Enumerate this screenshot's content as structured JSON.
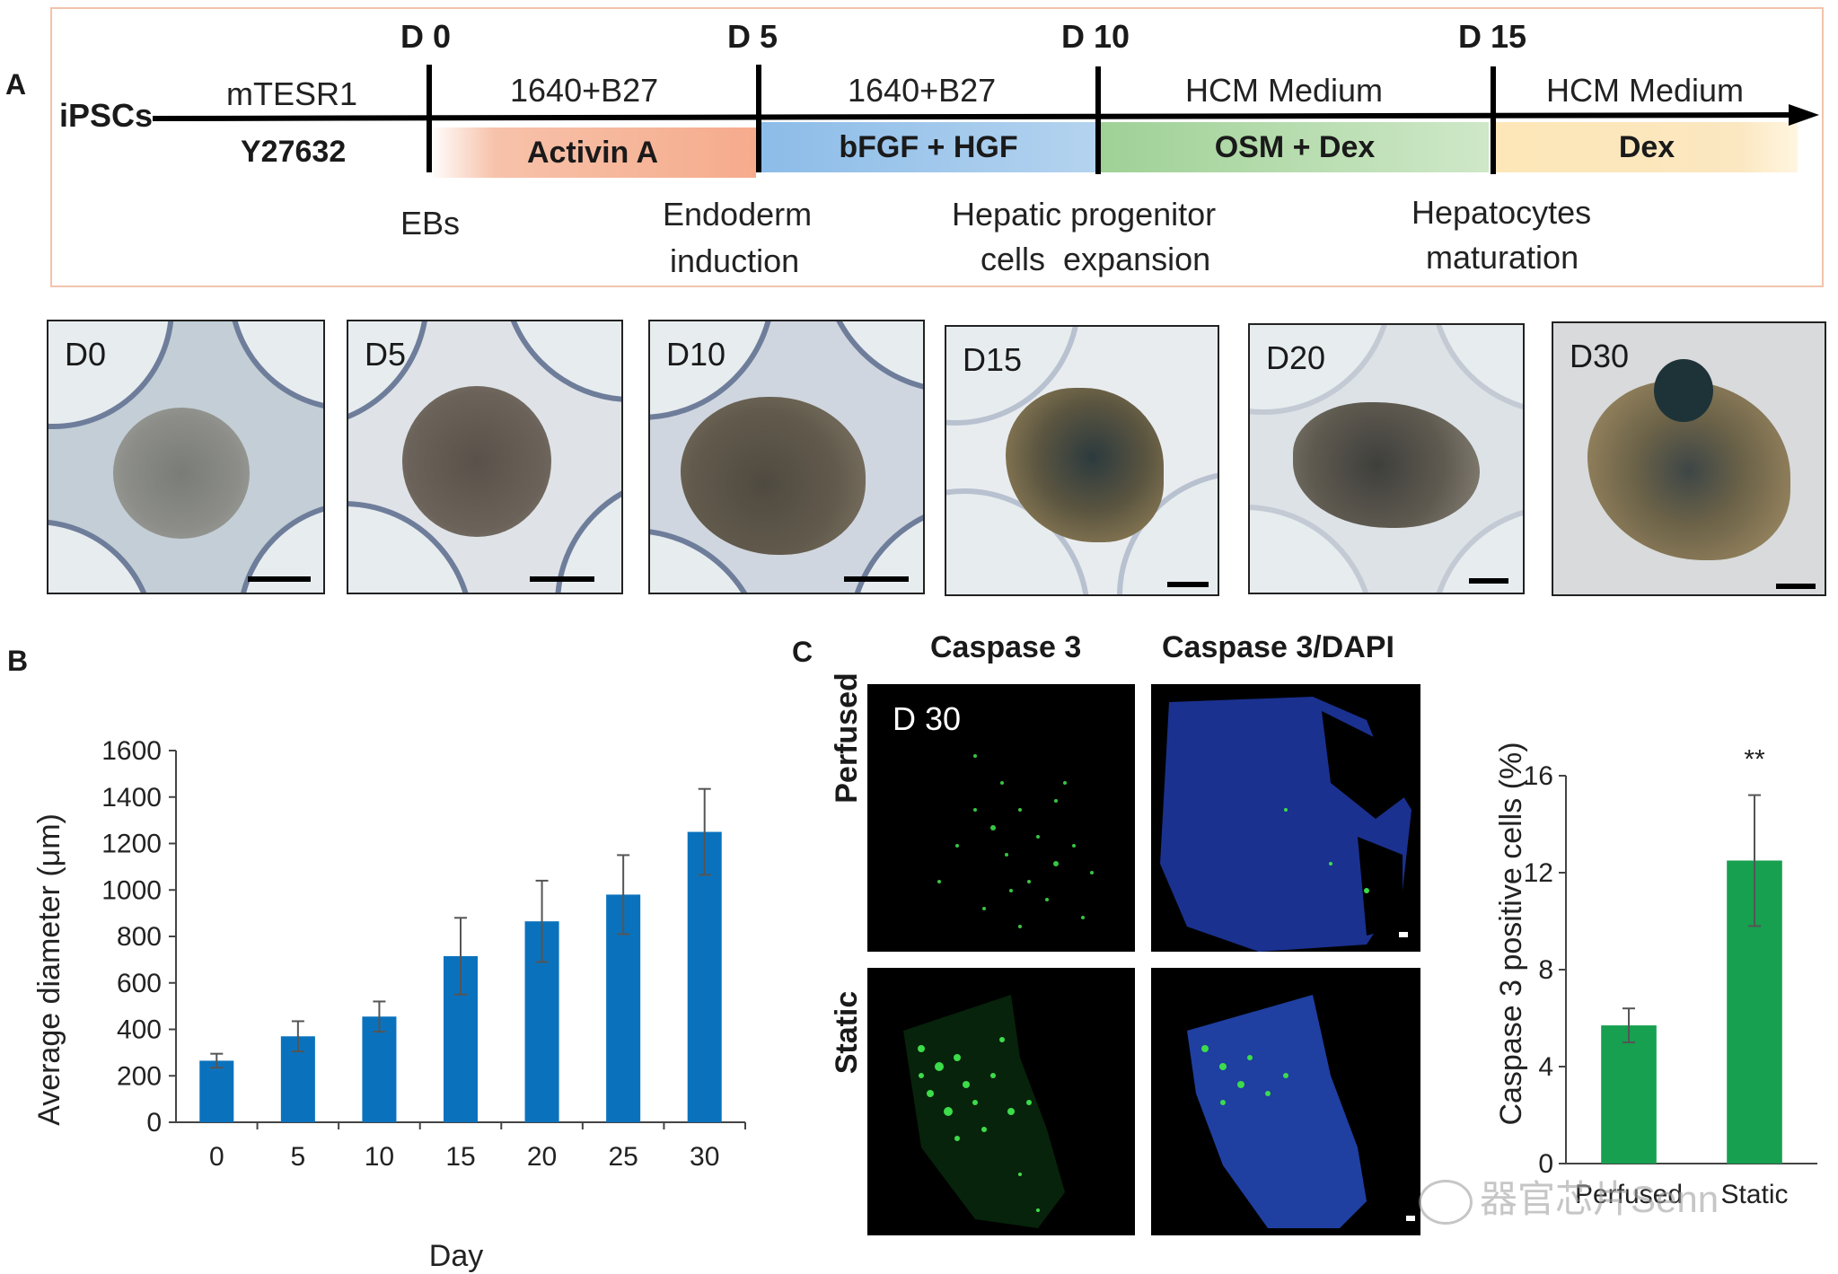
{
  "panelA": {
    "letter": "A",
    "start_label": "iPSCs",
    "days": [
      "D 0",
      "D 5",
      "D 10",
      "D 15"
    ],
    "media": [
      "mTESR1",
      "1640+B27",
      "1640+B27",
      "HCM Medium",
      "HCM Medium"
    ],
    "factors": [
      "Y27632",
      "Activin A",
      "bFGF + HGF",
      "OSM + Dex",
      "Dex"
    ],
    "stages": [
      {
        "line1": "EBs",
        "line2": ""
      },
      {
        "line1": "Endoderm",
        "line2": "induction"
      },
      {
        "line1": "Hepatic progenitor",
        "line2": "cells  expansion"
      },
      {
        "line1": "Hepatocytes",
        "line2": "maturation"
      }
    ],
    "micrographs": [
      "D0",
      "D5",
      "D10",
      "D15",
      "D20",
      "D30"
    ],
    "colors": {
      "activin": "#f6b79e",
      "bfgf": "#9cc3e8",
      "osm": "#a9d6a0",
      "dex": "#fbe2b0",
      "border": "#f2c3ad"
    }
  },
  "panelB": {
    "letter": "B",
    "chart_data": {
      "type": "bar",
      "categories": [
        "0",
        "5",
        "10",
        "15",
        "20",
        "25",
        "30"
      ],
      "values": [
        265,
        370,
        455,
        715,
        865,
        980,
        1250
      ],
      "errors": [
        30,
        65,
        65,
        165,
        175,
        170,
        185
      ],
      "xlabel": "Day",
      "ylabel": "Average diameter (μm)",
      "ylim": [
        0,
        1600
      ],
      "yticks": [
        "0",
        "200",
        "400",
        "600",
        "800",
        "1000",
        "1200",
        "1400",
        "1600"
      ],
      "color": "#0a72bd"
    }
  },
  "panelC": {
    "letter": "C",
    "col_headers": [
      "Caspase 3",
      "Caspase 3/DAPI"
    ],
    "row_headers": [
      "Perfused",
      "Static"
    ],
    "image_label": "D 30",
    "chart_data": {
      "type": "bar",
      "categories": [
        "Perfused",
        "Static"
      ],
      "values": [
        5.7,
        12.5
      ],
      "errors": [
        0.7,
        2.7
      ],
      "ylabel": "Caspase 3 positive cells (%)",
      "ylim": [
        0,
        16
      ],
      "yticks": [
        "0",
        "4",
        "8",
        "12",
        "16"
      ],
      "significance": "**",
      "color": "#16a04f"
    }
  },
  "watermark": "器官芯片Senn"
}
